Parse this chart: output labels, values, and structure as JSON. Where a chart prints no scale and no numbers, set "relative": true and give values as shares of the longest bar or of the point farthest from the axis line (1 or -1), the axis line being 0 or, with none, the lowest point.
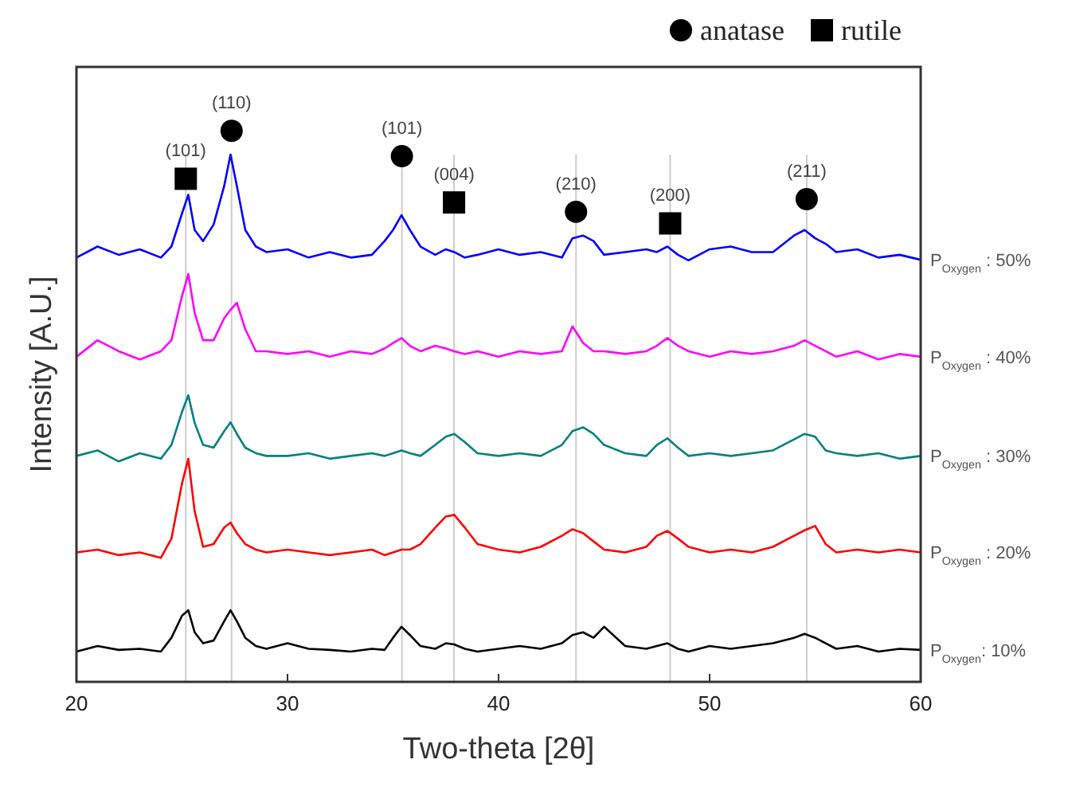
{
  "chart_data": {
    "type": "line",
    "xlabel": "Two-theta [2θ]",
    "ylabel": "Intensity [A.U.]",
    "relative": true,
    "xlim": [
      20,
      60
    ],
    "xticks": [
      20,
      30,
      40,
      50,
      60
    ],
    "legend": "top right",
    "grid": false,
    "x": [
      20,
      21,
      22,
      23,
      24,
      24.5,
      25,
      25.3,
      25.6,
      26,
      26.5,
      27,
      27.3,
      27.6,
      28,
      28.5,
      29,
      30,
      31,
      32,
      33,
      34,
      34.6,
      35,
      35.4,
      35.8,
      36.3,
      37,
      37.5,
      37.9,
      38.4,
      39,
      40,
      41,
      42,
      43,
      43.5,
      44,
      44.5,
      45,
      46,
      47,
      47.5,
      48,
      48.5,
      49,
      50,
      51,
      52,
      53,
      54,
      54.5,
      55,
      55.5,
      56,
      57,
      58,
      59,
      60
    ],
    "series": [
      {
        "name": "P$_{Oxygen}$ : 50%",
        "color": "#0000ff",
        "values": [
          0.77,
          0.79,
          0.775,
          0.785,
          0.77,
          0.79,
          0.85,
          0.884,
          0.82,
          0.8,
          0.83,
          0.9,
          0.957,
          0.9,
          0.82,
          0.79,
          0.78,
          0.785,
          0.77,
          0.78,
          0.77,
          0.775,
          0.8,
          0.82,
          0.847,
          0.82,
          0.79,
          0.775,
          0.785,
          0.78,
          0.77,
          0.775,
          0.785,
          0.775,
          0.78,
          0.77,
          0.805,
          0.81,
          0.8,
          0.775,
          0.78,
          0.785,
          0.78,
          0.79,
          0.775,
          0.765,
          0.785,
          0.79,
          0.78,
          0.78,
          0.81,
          0.82,
          0.805,
          0.795,
          0.78,
          0.785,
          0.77,
          0.775,
          0.766
        ]
      },
      {
        "name": "P$_{Oxygen}$ : 40%",
        "color": "#ff00ff",
        "values": [
          0.59,
          0.62,
          0.6,
          0.585,
          0.6,
          0.62,
          0.7,
          0.74,
          0.67,
          0.62,
          0.62,
          0.66,
          0.675,
          0.688,
          0.64,
          0.6,
          0.6,
          0.595,
          0.6,
          0.59,
          0.6,
          0.595,
          0.605,
          0.615,
          0.624,
          0.61,
          0.6,
          0.61,
          0.605,
          0.6,
          0.595,
          0.6,
          0.59,
          0.6,
          0.595,
          0.6,
          0.645,
          0.615,
          0.6,
          0.6,
          0.595,
          0.6,
          0.61,
          0.624,
          0.61,
          0.6,
          0.59,
          0.6,
          0.595,
          0.6,
          0.61,
          0.62,
          0.61,
          0.6,
          0.59,
          0.6,
          0.585,
          0.595,
          0.59
        ]
      },
      {
        "name": "P$_{Oxygen}$ : 30%",
        "color": "#008080",
        "values": [
          0.41,
          0.42,
          0.4,
          0.415,
          0.405,
          0.43,
          0.49,
          0.52,
          0.47,
          0.43,
          0.425,
          0.455,
          0.471,
          0.45,
          0.425,
          0.415,
          0.41,
          0.41,
          0.415,
          0.405,
          0.41,
          0.415,
          0.41,
          0.415,
          0.42,
          0.415,
          0.41,
          0.43,
          0.445,
          0.45,
          0.435,
          0.415,
          0.41,
          0.415,
          0.41,
          0.43,
          0.455,
          0.462,
          0.45,
          0.43,
          0.415,
          0.41,
          0.43,
          0.442,
          0.425,
          0.41,
          0.415,
          0.41,
          0.415,
          0.42,
          0.44,
          0.45,
          0.445,
          0.42,
          0.415,
          0.41,
          0.415,
          0.405,
          0.41
        ]
      },
      {
        "name": "P$_{Oxygen}$ : 20%",
        "color": "#ff0000",
        "values": [
          0.235,
          0.24,
          0.23,
          0.235,
          0.225,
          0.26,
          0.36,
          0.405,
          0.31,
          0.245,
          0.25,
          0.28,
          0.289,
          0.27,
          0.25,
          0.24,
          0.235,
          0.24,
          0.235,
          0.23,
          0.235,
          0.24,
          0.23,
          0.235,
          0.24,
          0.24,
          0.25,
          0.28,
          0.3,
          0.303,
          0.28,
          0.25,
          0.24,
          0.235,
          0.245,
          0.265,
          0.277,
          0.27,
          0.255,
          0.24,
          0.235,
          0.245,
          0.265,
          0.274,
          0.26,
          0.245,
          0.235,
          0.24,
          0.235,
          0.245,
          0.265,
          0.275,
          0.283,
          0.25,
          0.235,
          0.24,
          0.235,
          0.24,
          0.235
        ]
      },
      {
        "name": "P$_{Oxygen}$: 10%",
        "color": "#000000",
        "values": [
          0.055,
          0.065,
          0.058,
          0.06,
          0.055,
          0.08,
          0.12,
          0.13,
          0.09,
          0.07,
          0.075,
          0.11,
          0.13,
          0.11,
          0.08,
          0.065,
          0.06,
          0.07,
          0.06,
          0.058,
          0.055,
          0.06,
          0.058,
          0.08,
          0.1,
          0.085,
          0.065,
          0.06,
          0.07,
          0.068,
          0.06,
          0.055,
          0.06,
          0.065,
          0.06,
          0.07,
          0.085,
          0.09,
          0.08,
          0.1,
          0.065,
          0.06,
          0.065,
          0.07,
          0.06,
          0.055,
          0.065,
          0.06,
          0.065,
          0.07,
          0.08,
          0.087,
          0.08,
          0.07,
          0.06,
          0.065,
          0.055,
          0.06,
          0.058
        ]
      },
      {
        "name": "anatase",
        "type": "scatter",
        "marker": "circle",
        "color": "#000000",
        "x": [
          27.35,
          35.42,
          43.67,
          54.6
        ],
        "values": [
          1.0,
          0.954,
          0.853,
          0.876
        ]
      },
      {
        "name": "rutile",
        "type": "scatter",
        "marker": "square",
        "color": "#000000",
        "x": [
          25.18,
          37.89,
          48.13
        ],
        "values": [
          0.913,
          0.87,
          0.832
        ]
      }
    ],
    "ref_lines": [
      {
        "axis": "x",
        "value": 25.18,
        "color": "#cccccc"
      },
      {
        "axis": "x",
        "value": 27.35,
        "color": "#cccccc"
      },
      {
        "axis": "x",
        "value": 35.42,
        "color": "#cccccc"
      },
      {
        "axis": "x",
        "value": 37.89,
        "color": "#cccccc"
      },
      {
        "axis": "x",
        "value": 43.67,
        "color": "#cccccc"
      },
      {
        "axis": "x",
        "value": 48.13,
        "color": "#cccccc"
      },
      {
        "axis": "x",
        "value": 54.6,
        "color": "#cccccc"
      }
    ],
    "annotations": [
      {
        "text": "(101)",
        "x": 25.18,
        "y": 0.913
      },
      {
        "text": "(110)",
        "x": 27.35,
        "y": 1.0
      },
      {
        "text": "(101)",
        "x": 35.42,
        "y": 0.954
      },
      {
        "text": "(004)",
        "x": 37.89,
        "y": 0.87
      },
      {
        "text": "(210)",
        "x": 43.67,
        "y": 0.853
      },
      {
        "text": "(200)",
        "x": 48.13,
        "y": 0.832
      },
      {
        "text": "(211)",
        "x": 54.6,
        "y": 0.876
      }
    ]
  }
}
